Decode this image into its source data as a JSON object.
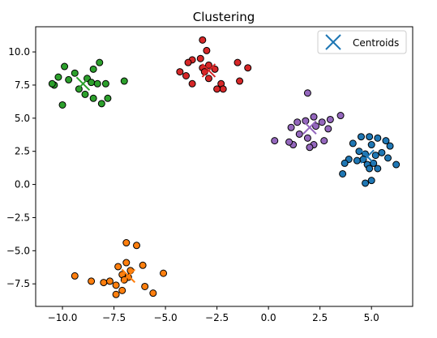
{
  "chart_data": {
    "type": "scatter",
    "title": "Clustering",
    "xlabel": "",
    "ylabel": "",
    "xlim": [
      -11.3,
      7.0
    ],
    "ylim": [
      -9.2,
      11.9
    ],
    "x_ticks": [
      -10.0,
      -7.5,
      -5.0,
      -2.5,
      0.0,
      2.5,
      5.0
    ],
    "x_tick_labels": [
      "−10.0",
      "−7.5",
      "−5.0",
      "−2.5",
      "0.0",
      "2.5",
      "5.0"
    ],
    "y_ticks": [
      10.0,
      7.5,
      5.0,
      2.5,
      0.0,
      -2.5,
      -5.0,
      -7.5
    ],
    "y_tick_labels": [
      "10.0",
      "7.5",
      "5.0",
      "2.5",
      "0.0",
      "−2.5",
      "−5.0",
      "−7.5"
    ],
    "grid": false,
    "legend": {
      "position": "top-right",
      "entries": [
        {
          "label": "Centroids",
          "marker": "x",
          "color": "#1f77b4"
        }
      ]
    },
    "series": [
      {
        "color": "#1f77b4",
        "centroid": [
          4.8,
          2.1
        ],
        "points": [
          [
            4.5,
            3.6
          ],
          [
            4.9,
            3.6
          ],
          [
            5.3,
            3.5
          ],
          [
            5.7,
            3.3
          ],
          [
            4.1,
            3.1
          ],
          [
            5.0,
            3.0
          ],
          [
            5.9,
            2.9
          ],
          [
            4.4,
            2.5
          ],
          [
            4.7,
            2.3
          ],
          [
            5.2,
            2.2
          ],
          [
            5.5,
            2.4
          ],
          [
            3.9,
            1.9
          ],
          [
            4.3,
            1.8
          ],
          [
            4.6,
            1.9
          ],
          [
            5.8,
            2.0
          ],
          [
            3.7,
            1.6
          ],
          [
            4.8,
            1.5
          ],
          [
            5.1,
            1.6
          ],
          [
            6.2,
            1.5
          ],
          [
            4.9,
            1.2
          ],
          [
            5.3,
            1.2
          ],
          [
            3.6,
            0.8
          ],
          [
            5.0,
            0.3
          ],
          [
            4.7,
            0.1
          ]
        ]
      },
      {
        "color": "#ff7f0e",
        "centroid": [
          -6.8,
          -6.9
        ],
        "points": [
          [
            -6.9,
            -4.4
          ],
          [
            -6.4,
            -4.6
          ],
          [
            -7.3,
            -6.2
          ],
          [
            -6.9,
            -5.9
          ],
          [
            -6.7,
            -6.5
          ],
          [
            -6.1,
            -6.1
          ],
          [
            -7.1,
            -6.8
          ],
          [
            -6.8,
            -7.0
          ],
          [
            -5.1,
            -6.7
          ],
          [
            -9.4,
            -6.9
          ],
          [
            -7.0,
            -7.2
          ],
          [
            -8.6,
            -7.3
          ],
          [
            -8.0,
            -7.4
          ],
          [
            -7.7,
            -7.3
          ],
          [
            -7.4,
            -7.6
          ],
          [
            -6.0,
            -7.7
          ],
          [
            -7.1,
            -8.0
          ],
          [
            -5.6,
            -8.2
          ],
          [
            -7.4,
            -8.3
          ]
        ]
      },
      {
        "color": "#2ca02c",
        "centroid": [
          -9.0,
          7.6
        ],
        "points": [
          [
            -9.9,
            8.9
          ],
          [
            -8.2,
            9.2
          ],
          [
            -10.4,
            7.5
          ],
          [
            -9.7,
            7.9
          ],
          [
            -10.2,
            8.1
          ],
          [
            -9.4,
            8.4
          ],
          [
            -8.8,
            8.0
          ],
          [
            -8.6,
            7.7
          ],
          [
            -8.3,
            7.6
          ],
          [
            -7.9,
            7.6
          ],
          [
            -7.0,
            7.8
          ],
          [
            -9.2,
            7.2
          ],
          [
            -8.9,
            6.8
          ],
          [
            -8.5,
            6.5
          ],
          [
            -7.8,
            6.5
          ],
          [
            -10.5,
            7.6
          ],
          [
            -10.0,
            6.0
          ],
          [
            -8.1,
            6.1
          ],
          [
            -8.5,
            8.7
          ]
        ]
      },
      {
        "color": "#d62728",
        "centroid": [
          -2.9,
          8.6
        ],
        "points": [
          [
            -3.2,
            10.9
          ],
          [
            -3.0,
            10.1
          ],
          [
            -3.3,
            9.5
          ],
          [
            -3.7,
            9.4
          ],
          [
            -3.9,
            9.2
          ],
          [
            -2.9,
            9.0
          ],
          [
            -3.2,
            8.8
          ],
          [
            -2.6,
            8.7
          ],
          [
            -1.5,
            9.2
          ],
          [
            -1.0,
            8.8
          ],
          [
            -4.3,
            8.5
          ],
          [
            -4.0,
            8.2
          ],
          [
            -3.1,
            8.5
          ],
          [
            -2.9,
            8.0
          ],
          [
            -2.3,
            7.6
          ],
          [
            -1.4,
            7.8
          ],
          [
            -3.7,
            7.6
          ],
          [
            -2.2,
            7.2
          ],
          [
            -2.5,
            7.2
          ]
        ]
      },
      {
        "color": "#9467bd",
        "centroid": [
          2.0,
          4.3
        ],
        "points": [
          [
            1.9,
            6.9
          ],
          [
            3.0,
            4.9
          ],
          [
            2.6,
            4.7
          ],
          [
            2.2,
            5.1
          ],
          [
            1.8,
            4.8
          ],
          [
            1.4,
            4.7
          ],
          [
            1.1,
            4.3
          ],
          [
            2.3,
            4.4
          ],
          [
            2.9,
            4.2
          ],
          [
            3.5,
            5.2
          ],
          [
            1.5,
            3.8
          ],
          [
            1.9,
            3.5
          ],
          [
            2.7,
            3.3
          ],
          [
            0.3,
            3.3
          ],
          [
            1.2,
            3.0
          ],
          [
            2.2,
            3.0
          ],
          [
            1.0,
            3.2
          ],
          [
            2.0,
            2.8
          ]
        ]
      }
    ]
  }
}
